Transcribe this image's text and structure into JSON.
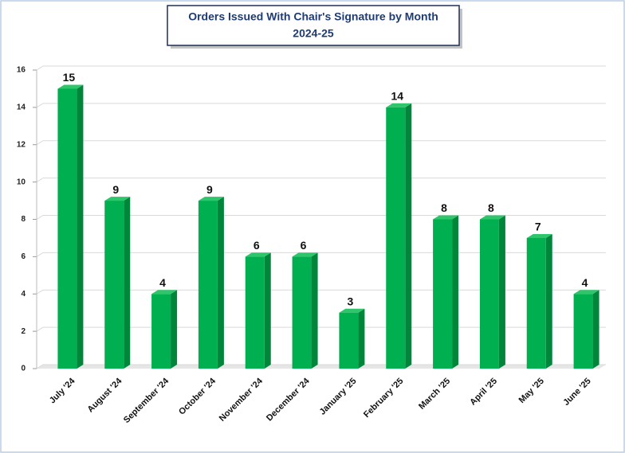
{
  "chart_data": {
    "type": "bar",
    "title": "Orders Issued With Chair's Signature by Month",
    "subtitle": "2024-25",
    "categories": [
      "July '24",
      "August '24",
      "September '24",
      "October '24",
      "November '24",
      "December '24",
      "January '25",
      "February '25",
      "March '25",
      "April '25",
      "May '25",
      "June '25"
    ],
    "values": [
      15,
      9,
      4,
      9,
      6,
      6,
      3,
      14,
      8,
      8,
      7,
      4
    ],
    "color": "#00b050",
    "ylim": [
      0,
      16
    ],
    "yticks": [
      0,
      2,
      4,
      6,
      8,
      10,
      12,
      14,
      16
    ],
    "grid": true
  }
}
